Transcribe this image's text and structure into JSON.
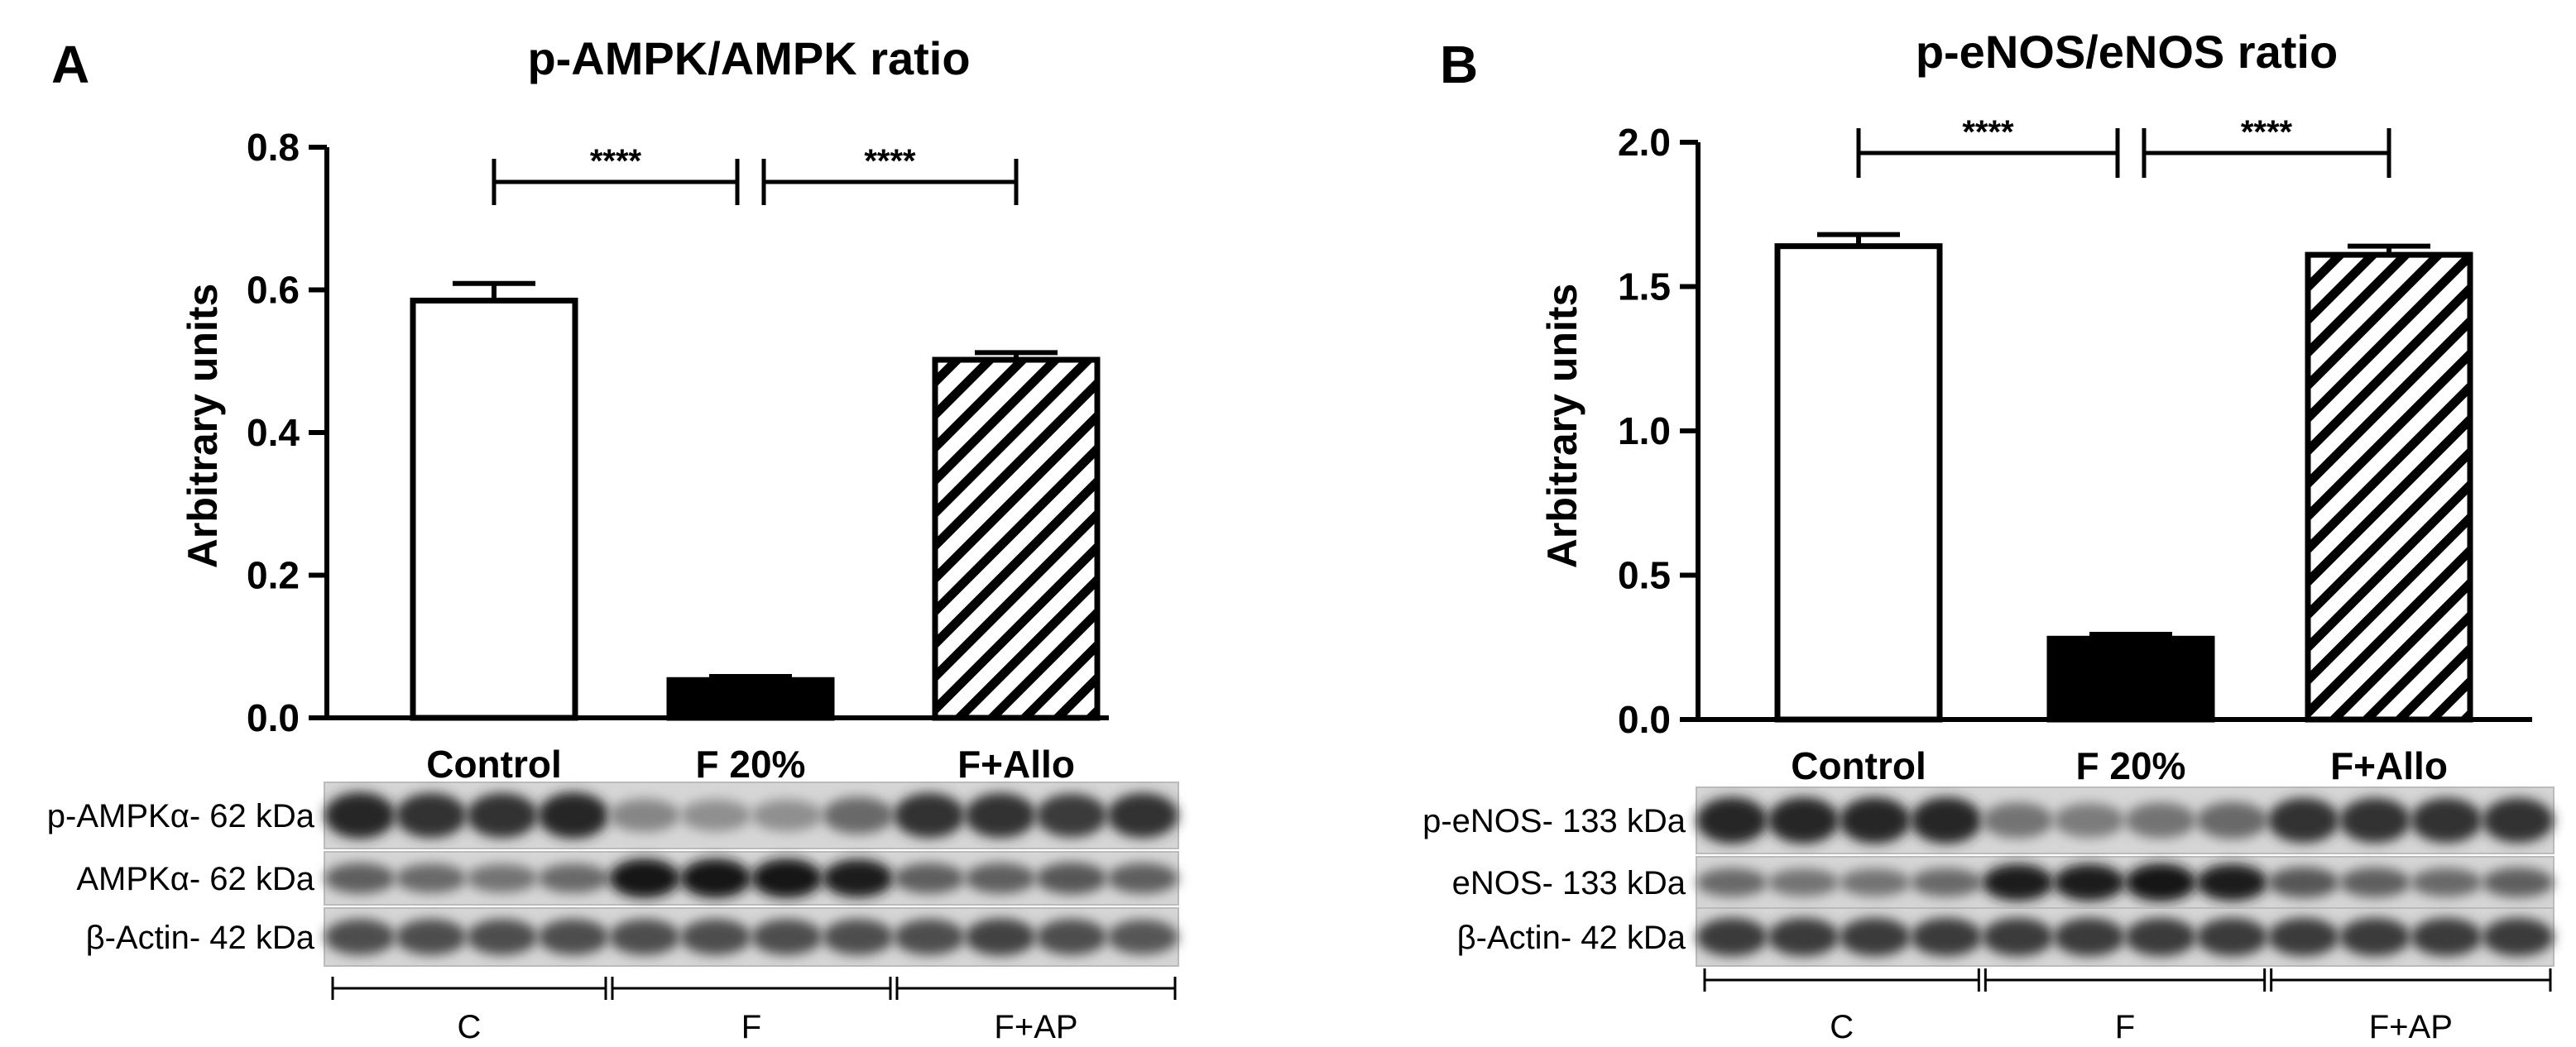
{
  "chart_data": [
    {
      "type": "bar",
      "panel": "A",
      "title": "p-AMPK/AMPK ratio",
      "ylabel": "Arbitrary units",
      "ylim": [
        0,
        0.8
      ],
      "yticks": [
        "0.0",
        "0.2",
        "0.4",
        "0.6",
        "0.8"
      ],
      "categories": [
        "Control",
        "F 20%",
        "F+Allo"
      ],
      "values": [
        0.585,
        0.053,
        0.502
      ],
      "errors": [
        0.024,
        0.005,
        0.01
      ],
      "fills": [
        "white",
        "black",
        "hatch"
      ],
      "significance": [
        {
          "from": 0,
          "to": 1,
          "label": "****"
        },
        {
          "from": 1,
          "to": 2,
          "label": "****"
        }
      ],
      "blots": {
        "labels": [
          "p-AMPKα- 62 kDa",
          "AMPKα- 62 kDa",
          "β-Actin- 42 kDa"
        ],
        "lane_intensity": [
          [
            0.85,
            0.8,
            0.8,
            0.85,
            0.35,
            0.3,
            0.3,
            0.5,
            0.8,
            0.8,
            0.75,
            0.8
          ],
          [
            0.55,
            0.5,
            0.45,
            0.5,
            0.95,
            0.95,
            0.95,
            0.9,
            0.55,
            0.55,
            0.6,
            0.55
          ],
          [
            0.65,
            0.65,
            0.65,
            0.65,
            0.65,
            0.65,
            0.65,
            0.65,
            0.65,
            0.7,
            0.65,
            0.6
          ]
        ],
        "groups": [
          "C",
          "F",
          "F+AP"
        ]
      }
    },
    {
      "type": "bar",
      "panel": "B",
      "title": "p-eNOS/eNOS ratio",
      "ylabel": "Arbitrary units",
      "ylim": [
        0,
        2.0
      ],
      "yticks": [
        "0.0",
        "0.5",
        "1.0",
        "1.5",
        "2.0"
      ],
      "categories": [
        "Control",
        "F 20%",
        "F+Allo"
      ],
      "values": [
        1.64,
        0.28,
        1.61
      ],
      "errors": [
        0.04,
        0.015,
        0.03
      ],
      "fills": [
        "white",
        "black",
        "hatch"
      ],
      "significance": [
        {
          "from": 0,
          "to": 1,
          "label": "****"
        },
        {
          "from": 1,
          "to": 2,
          "label": "****"
        }
      ],
      "blots": {
        "labels": [
          "p-eNOS- 133 kDa",
          "eNOS- 133 kDa",
          "β-Actin- 42 kDa"
        ],
        "lane_intensity": [
          [
            0.85,
            0.85,
            0.85,
            0.85,
            0.45,
            0.4,
            0.45,
            0.5,
            0.8,
            0.8,
            0.8,
            0.8
          ],
          [
            0.5,
            0.45,
            0.45,
            0.5,
            0.9,
            0.9,
            0.95,
            0.9,
            0.6,
            0.55,
            0.5,
            0.55
          ],
          [
            0.75,
            0.75,
            0.75,
            0.75,
            0.75,
            0.75,
            0.75,
            0.75,
            0.75,
            0.75,
            0.75,
            0.75
          ]
        ],
        "groups": [
          "C",
          "F",
          "F+AP"
        ]
      }
    }
  ]
}
